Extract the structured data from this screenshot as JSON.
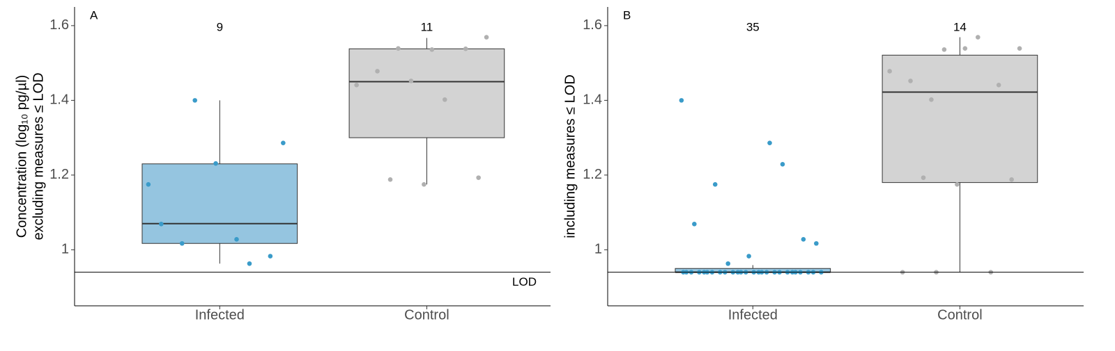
{
  "chart_data": [
    {
      "type": "box",
      "panel": "A",
      "y_label": [
        "Concentration (log₁₀ pg/µl)",
        "excluding measures ≤ LOD"
      ],
      "categories": [
        "Infected",
        "Control"
      ],
      "ylim": [
        0.85,
        1.65
      ],
      "yticks": [
        1,
        1.2,
        1.4,
        1.6
      ],
      "lod": 0.94,
      "lod_label": "LOD",
      "groups": [
        {
          "n": 9,
          "box_color": "#95c5e0",
          "point_color": "#3a9bc9",
          "whisker_low": 0.963,
          "q1": 1.017,
          "median": 1.07,
          "q3": 1.23,
          "whisker_high": 1.4,
          "points": [
            1.175,
            1.028,
            1.017,
            0.983,
            1.231,
            1.069,
            0.963,
            1.4,
            1.286
          ]
        },
        {
          "n": 11,
          "box_color": "#d3d3d3",
          "point_color": "#b0b0b0",
          "whisker_low": 1.175,
          "q1": 1.3,
          "median": 1.45,
          "q3": 1.538,
          "whisker_high": 1.567,
          "points": [
            1.539,
            1.569,
            1.536,
            1.478,
            1.538,
            1.452,
            1.441,
            1.402,
            1.188,
            1.193,
            1.175
          ]
        }
      ]
    },
    {
      "type": "box",
      "panel": "B",
      "y_label": [
        "including measures ≤ LOD"
      ],
      "categories": [
        "Infected",
        "Control"
      ],
      "ylim": [
        0.85,
        1.65
      ],
      "yticks": [
        1,
        1.2,
        1.4,
        1.6
      ],
      "lod": 0.94,
      "groups": [
        {
          "n": 35,
          "box_color": "#95c5e0",
          "point_color": "#3a9bc9",
          "whisker_low": 0.94,
          "q1": 0.94,
          "median": 0.94,
          "q3": 0.95,
          "whisker_high": 0.959,
          "points": [
            1.4,
            1.286,
            1.175,
            1.028,
            0.983,
            1.069,
            1.229,
            0.963,
            1.017,
            0.94,
            0.94,
            0.94,
            0.94,
            0.94,
            0.94,
            0.94,
            0.94,
            0.94,
            0.94,
            0.94,
            0.94,
            0.94,
            0.94,
            0.94,
            0.94,
            0.94,
            0.94,
            0.94,
            0.94,
            0.94,
            0.94,
            0.94,
            0.94,
            0.94,
            0.94
          ]
        },
        {
          "n": 14,
          "box_color": "#d3d3d3",
          "point_color": "#b0b0b0",
          "whisker_low": 0.94,
          "q1": 1.18,
          "median": 1.422,
          "q3": 1.521,
          "whisker_high": 1.569,
          "points": [
            1.402,
            1.539,
            1.539,
            1.452,
            1.441,
            1.536,
            1.478,
            1.569,
            1.193,
            1.188,
            1.175,
            0.94,
            0.94,
            0.94
          ]
        }
      ]
    }
  ]
}
